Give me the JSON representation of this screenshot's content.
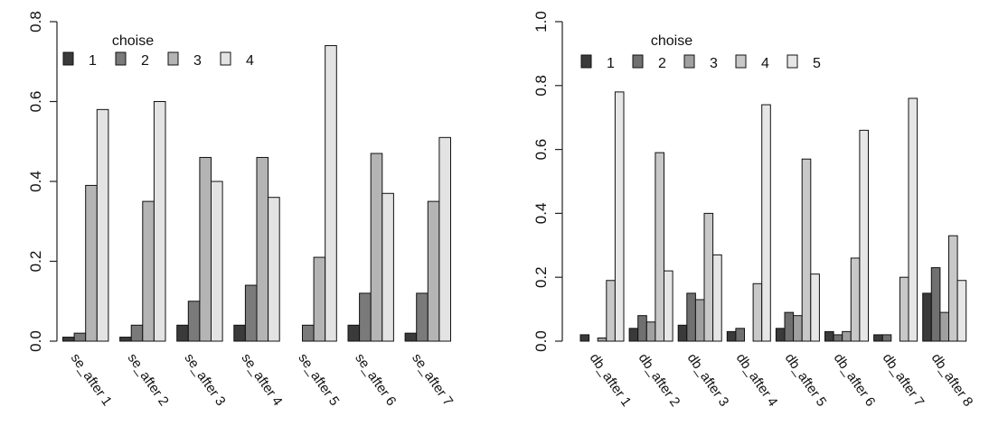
{
  "chart_data": [
    {
      "type": "bar",
      "layout": "grouped",
      "legend_title": "choise",
      "legend_position": "top-left",
      "ylim": [
        0,
        0.8
      ],
      "yticks": [
        "0.0",
        "0.2",
        "0.4",
        "0.6",
        "0.8"
      ],
      "ytick_values": [
        0,
        0.2,
        0.4,
        0.6,
        0.8
      ],
      "categories": [
        "se_after 1",
        "se_after 2",
        "se_after 3",
        "se_after 4",
        "se_after 5",
        "se_after 6",
        "se_after 7"
      ],
      "series": [
        {
          "name": "1",
          "color": "#3a3a3a",
          "values": [
            0.01,
            0.01,
            0.04,
            0.04,
            0.0,
            0.04,
            0.02
          ]
        },
        {
          "name": "2",
          "color": "#7a7a7a",
          "values": [
            0.02,
            0.04,
            0.1,
            0.14,
            0.04,
            0.12,
            0.12
          ]
        },
        {
          "name": "3",
          "color": "#b4b4b4",
          "values": [
            0.39,
            0.35,
            0.46,
            0.46,
            0.21,
            0.47,
            0.35
          ]
        },
        {
          "name": "4",
          "color": "#e3e3e3",
          "values": [
            0.58,
            0.6,
            0.4,
            0.36,
            0.74,
            0.37,
            0.51
          ]
        }
      ]
    },
    {
      "type": "bar",
      "layout": "grouped",
      "legend_title": "choise",
      "legend_position": "top-left",
      "ylim": [
        0,
        1.0
      ],
      "yticks": [
        "0.0",
        "0.2",
        "0.4",
        "0.6",
        "0.8",
        "1.0"
      ],
      "ytick_values": [
        0,
        0.2,
        0.4,
        0.6,
        0.8,
        1.0
      ],
      "categories": [
        "db_after 1",
        "db_after 2",
        "db_after 3",
        "db_after 4",
        "db_after 5",
        "db_after 6",
        "db_after 7",
        "db_after 8"
      ],
      "series": [
        {
          "name": "1",
          "color": "#3a3a3a",
          "values": [
            0.02,
            0.04,
            0.05,
            0.03,
            0.04,
            0.03,
            0.02,
            0.15
          ]
        },
        {
          "name": "2",
          "color": "#707070",
          "values": [
            0.0,
            0.08,
            0.15,
            0.04,
            0.09,
            0.02,
            0.02,
            0.23
          ]
        },
        {
          "name": "3",
          "color": "#a0a0a0",
          "values": [
            0.01,
            0.06,
            0.13,
            0.0,
            0.08,
            0.03,
            0.0,
            0.09
          ]
        },
        {
          "name": "4",
          "color": "#c8c8c8",
          "values": [
            0.19,
            0.59,
            0.4,
            0.18,
            0.57,
            0.26,
            0.2,
            0.33
          ]
        },
        {
          "name": "5",
          "color": "#e6e6e6",
          "values": [
            0.78,
            0.22,
            0.27,
            0.74,
            0.21,
            0.66,
            0.76,
            0.19
          ]
        }
      ]
    }
  ]
}
